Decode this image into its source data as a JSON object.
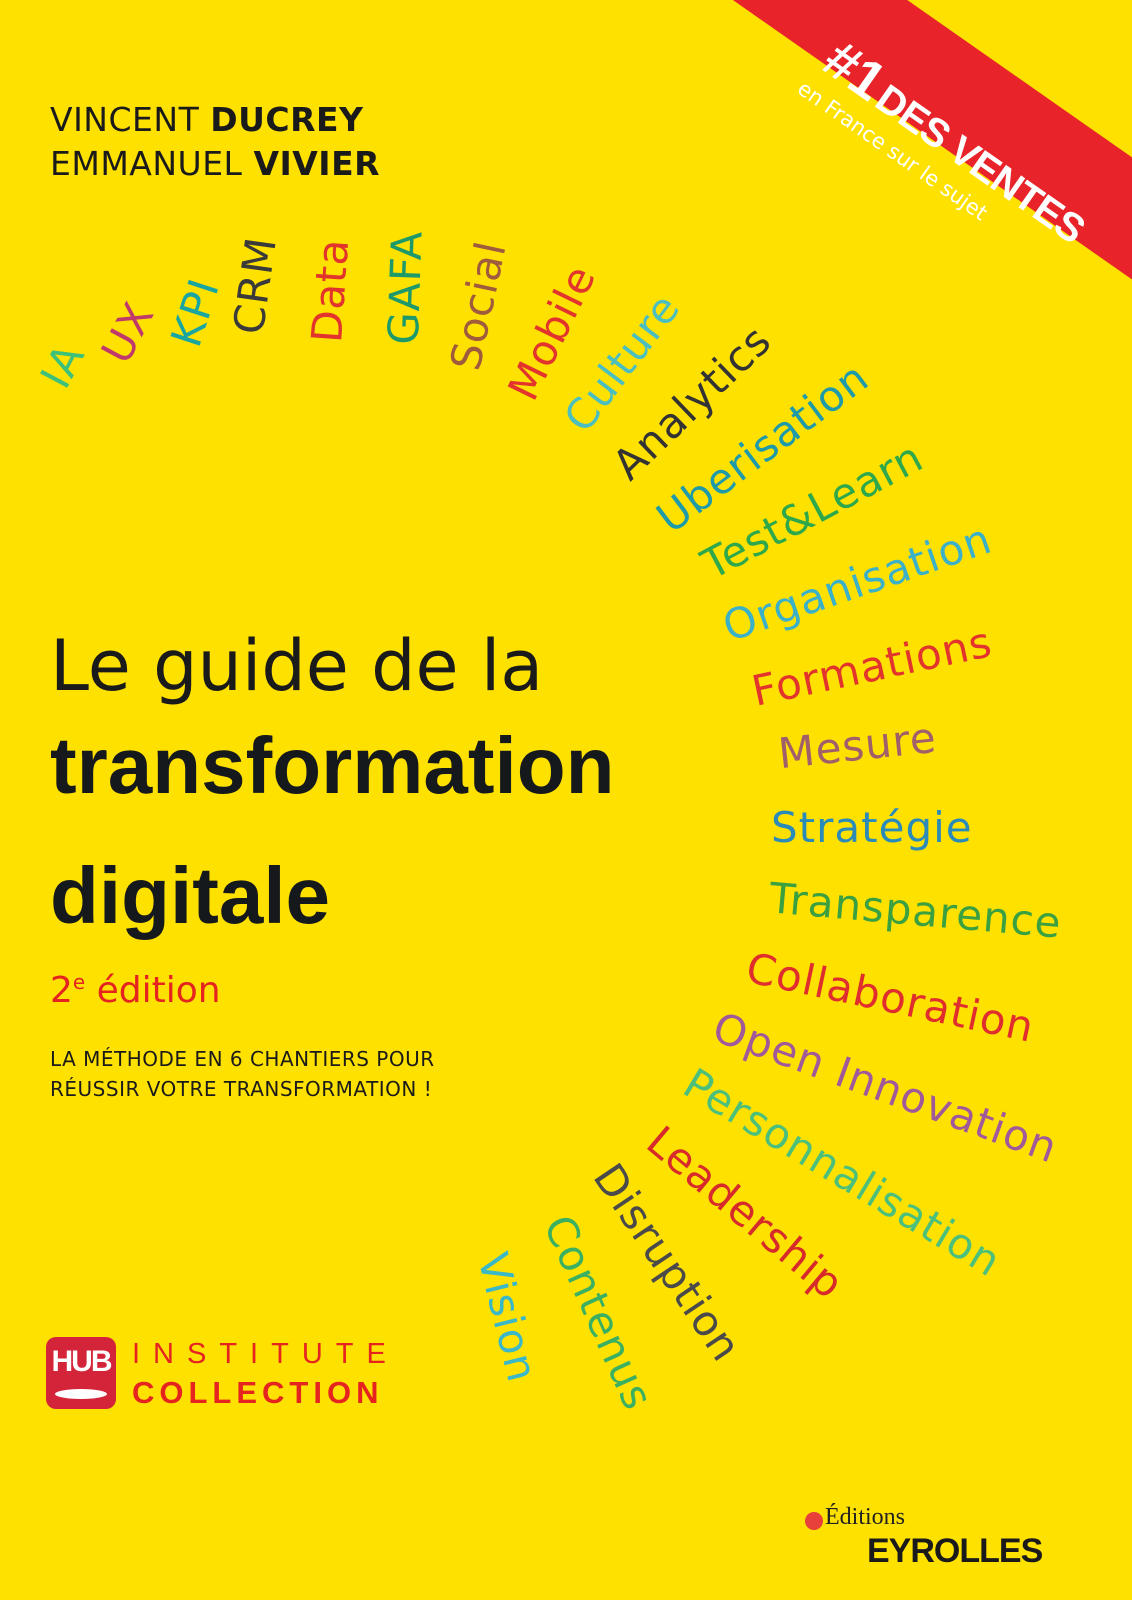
{
  "authors": [
    {
      "first": "VINCENT",
      "last": "DUCREY"
    },
    {
      "first": "EMMANUEL",
      "last": "VIVIER"
    }
  ],
  "banner": {
    "num": "#1",
    "headline": "DES VENTES",
    "sub": "en France sur le sujet",
    "color": "#e8232a"
  },
  "title": {
    "line1": "Le guide de la",
    "line2": "transformation",
    "line3": "digitale"
  },
  "edition": {
    "num": "2",
    "sup": "e",
    "text": " édition"
  },
  "subtitle": {
    "line1": "LA MÉTHODE EN 6 CHANTIERS POUR",
    "line2": "RÉUSSIR VOTRE TRANSFORMATION !"
  },
  "collection": {
    "logo": "HUB",
    "line1": "INSTITUTE",
    "line2": "COLLECTION"
  },
  "publisher": {
    "line1": "Éditions",
    "line2": "EYROLLES"
  },
  "words": [
    {
      "text": "IA",
      "color": "#3cc07a"
    },
    {
      "text": "UX",
      "color": "#c0396b"
    },
    {
      "text": "KPI",
      "color": "#1aa6a0"
    },
    {
      "text": "CRM",
      "color": "#3a3a3a"
    },
    {
      "text": "Data",
      "color": "#e2342c"
    },
    {
      "text": "GAFA",
      "color": "#1e9a6a"
    },
    {
      "text": "Social",
      "color": "#a05a3c"
    },
    {
      "text": "Mobile",
      "color": "#e2342c"
    },
    {
      "text": "Culture",
      "color": "#4bbfc0"
    },
    {
      "text": "Analytics",
      "color": "#333333"
    },
    {
      "text": "Uberisation",
      "color": "#1e9aa8"
    },
    {
      "text": "Test&Learn",
      "color": "#2ea84a"
    },
    {
      "text": "Organisation",
      "color": "#3bb0c9"
    },
    {
      "text": "Formations",
      "color": "#e2342c"
    },
    {
      "text": "Mesure",
      "color": "#a0606a"
    },
    {
      "text": "Stratégie",
      "color": "#2a8ab8"
    },
    {
      "text": "Transparence",
      "color": "#3aa040"
    },
    {
      "text": "Collaboration",
      "color": "#e02d2d"
    },
    {
      "text": "Open Innovation",
      "color": "#a05a9a"
    },
    {
      "text": "Personnalisation",
      "color": "#4cc07a"
    },
    {
      "text": "Leadership",
      "color": "#d72a2a"
    },
    {
      "text": "Disruption",
      "color": "#4a4a4a"
    },
    {
      "text": "Contenus",
      "color": "#3ab060"
    },
    {
      "text": "Vision",
      "color": "#3ab8c8"
    }
  ]
}
